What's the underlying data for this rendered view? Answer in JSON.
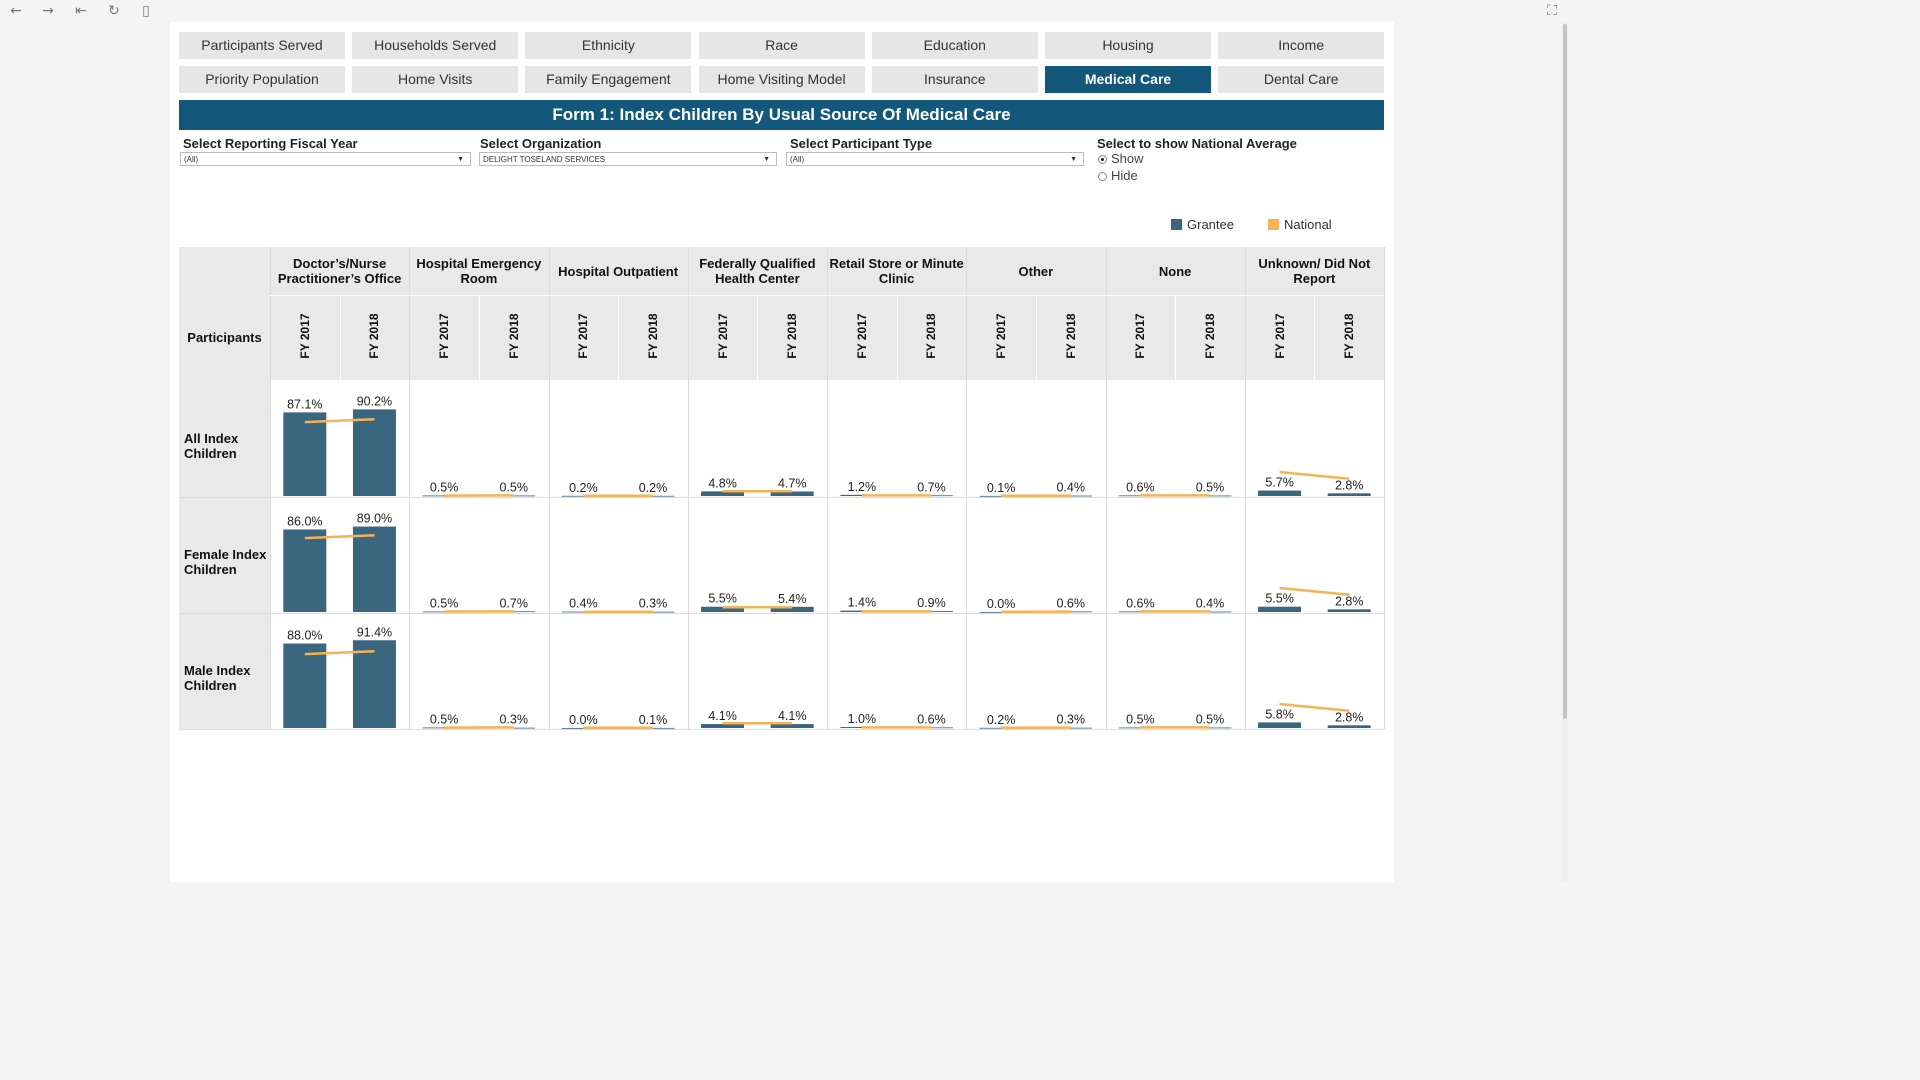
{
  "toolbar": {
    "icons": [
      "back-icon",
      "forward-icon",
      "first-icon",
      "refresh-icon",
      "pause-icon",
      "fullscreen-icon"
    ]
  },
  "tabs_row1": [
    "Participants Served",
    "Households Served",
    "Ethnicity",
    "Race",
    "Education",
    "Housing",
    "Income"
  ],
  "tabs_row2": [
    "Priority Population",
    "Home Visits",
    "Family Engagement",
    "Home Visiting Model",
    "Insurance",
    "Medical Care",
    "Dental Care"
  ],
  "active_tab": "Medical Care",
  "title": "Form 1: Index Children By Usual Source Of Medical Care",
  "filters": {
    "fiscal_year": {
      "label": "Select Reporting Fiscal Year",
      "value": "(All)"
    },
    "organization": {
      "label": "Select Organization",
      "value": "DELIGHT TOSELAND SERVICES"
    },
    "participant_type": {
      "label": "Select Participant Type",
      "value": "(All)"
    },
    "national_average": {
      "label": "Select to show National Average",
      "options": [
        "Show",
        "Hide"
      ],
      "selected": "Show"
    }
  },
  "legend": {
    "grantee": "Grantee",
    "national": "National"
  },
  "colors": {
    "grantee": "#3b6680",
    "national": "#f6b254",
    "header_bg": "#e9e9e9",
    "brand": "#13577b"
  },
  "chart_data": {
    "type": "bar",
    "row_header": "Participants",
    "categories": [
      "Doctor’s/Nurse Practitioner’s Office",
      "Hospital Emergency Room",
      "Hospital Outpatient",
      "Federally Qualified Health Center",
      "Retail Store or Minute Clinic",
      "Other",
      "None",
      "Unknown/ Did Not Report"
    ],
    "years": [
      "FY 2017",
      "FY 2018"
    ],
    "rows": [
      {
        "name": "All Index Children",
        "grantee": [
          [
            87.1,
            90.2
          ],
          [
            0.5,
            0.5
          ],
          [
            0.2,
            0.2
          ],
          [
            4.8,
            4.7
          ],
          [
            1.2,
            0.7
          ],
          [
            0.1,
            0.4
          ],
          [
            0.6,
            0.5
          ],
          [
            5.7,
            2.8
          ]
        ],
        "national": [
          [
            77,
            80
          ],
          [
            0.4,
            0.6
          ],
          [
            0.3,
            0.2
          ],
          [
            5.0,
            5.0
          ],
          [
            0.6,
            0.6
          ],
          [
            0.3,
            0.4
          ],
          [
            0.7,
            0.6
          ],
          [
            25,
            18
          ]
        ]
      },
      {
        "name": "Female Index Children",
        "grantee": [
          [
            86.0,
            89.0
          ],
          [
            0.5,
            0.7
          ],
          [
            0.4,
            0.3
          ],
          [
            5.5,
            5.4
          ],
          [
            1.4,
            0.9
          ],
          [
            0.0,
            0.6
          ],
          [
            0.6,
            0.4
          ],
          [
            5.5,
            2.8
          ]
        ],
        "national": [
          [
            77,
            80
          ],
          [
            0.4,
            0.6
          ],
          [
            0.3,
            0.2
          ],
          [
            5.0,
            5.0
          ],
          [
            0.6,
            0.6
          ],
          [
            0.3,
            0.4
          ],
          [
            0.7,
            0.6
          ],
          [
            25,
            18
          ]
        ]
      },
      {
        "name": "Male Index Children",
        "grantee": [
          [
            88.0,
            91.4
          ],
          [
            0.5,
            0.3
          ],
          [
            0.0,
            0.1
          ],
          [
            4.1,
            4.1
          ],
          [
            1.0,
            0.6
          ],
          [
            0.2,
            0.3
          ],
          [
            0.5,
            0.5
          ],
          [
            5.8,
            2.8
          ]
        ],
        "national": [
          [
            77,
            80
          ],
          [
            0.4,
            0.6
          ],
          [
            0.3,
            0.2
          ],
          [
            5.0,
            5.0
          ],
          [
            0.6,
            0.6
          ],
          [
            0.3,
            0.4
          ],
          [
            0.7,
            0.6
          ],
          [
            25,
            18
          ]
        ]
      }
    ],
    "ylim": [
      0,
      100
    ]
  }
}
